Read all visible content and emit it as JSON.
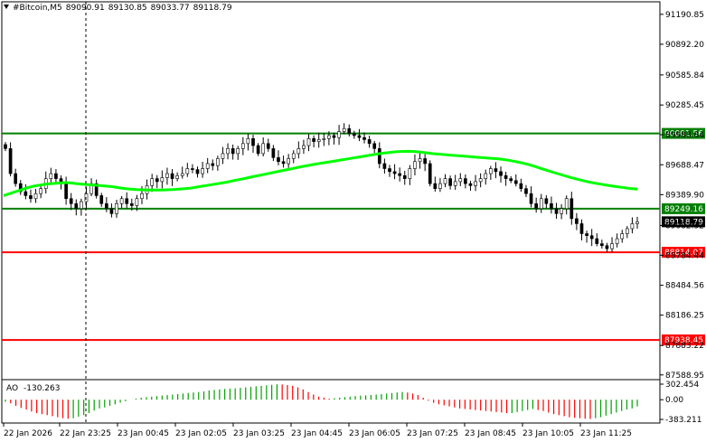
{
  "header": {
    "symbol": "#Bitcoin,M5",
    "open": "89090.91",
    "high": "89130.85",
    "low": "89033.77",
    "close": "89118.79"
  },
  "indicator": {
    "name": "AO",
    "value": "-130.263",
    "axis_labels": [
      "302.454",
      "0.00",
      "-383.211"
    ],
    "axis_values": [
      302.454,
      0,
      -383.211
    ]
  },
  "colors": {
    "background": "#ffffff",
    "candles": "#000000",
    "moving_average": "#00ff00",
    "support_lines": "#008000",
    "resistance_lines": "#ff0000",
    "ao_up": "#00a000",
    "ao_down": "#ff0000",
    "crosshair": "#000000"
  },
  "chart_data": {
    "type": "candlestick",
    "price_axis_labels": [
      "91190.85",
      "90892.20",
      "90585.84",
      "90285.45",
      "89988.84",
      "89688.47",
      "89389.90",
      "89082.32",
      "88784.44",
      "88484.56",
      "88186.25",
      "87883.22",
      "87588.95"
    ],
    "price_axis_values": [
      91190.85,
      90892.2,
      90585.84,
      90285.45,
      89988.84,
      89688.47,
      89389.9,
      89082.32,
      88784.44,
      88484.56,
      88186.25,
      87883.22,
      87588.95
    ],
    "ylim": [
      87560,
      91280
    ],
    "time_labels": [
      "22 Jan 2026",
      "22 Jan 23:25",
      "23 Jan 00:45",
      "23 Jan 02:05",
      "23 Jan 03:25",
      "23 Jan 04:45",
      "23 Jan 06:05",
      "23 Jan 07:25",
      "23 Jan 08:45",
      "23 Jan 10:05",
      "23 Jan 11:25"
    ],
    "levels": [
      {
        "label": "90001.56",
        "value": 90001.56,
        "kind": "green"
      },
      {
        "label": "89249.16",
        "value": 89249.16,
        "kind": "green"
      },
      {
        "label": "88814.07",
        "value": 88814.07,
        "kind": "red"
      },
      {
        "label": "87938.45",
        "value": 87938.45,
        "kind": "red"
      }
    ],
    "current_price": {
      "label": "89118.79",
      "value": 89118.79
    },
    "closes": [
      89850,
      89600,
      89500,
      89420,
      89380,
      89350,
      89400,
      89450,
      89550,
      89600,
      89550,
      89500,
      89350,
      89300,
      89250,
      89320,
      89400,
      89500,
      89380,
      89300,
      89250,
      89200,
      89300,
      89350,
      89300,
      89280,
      89350,
      89400,
      89480,
      89550,
      89520,
      89560,
      89600,
      89550,
      89580,
      89600,
      89650,
      89640,
      89600,
      89650,
      89700,
      89680,
      89750,
      89800,
      89850,
      89800,
      89850,
      89900,
      89950,
      89880,
      89800,
      89900,
      89850,
      89760,
      89720,
      89700,
      89750,
      89800,
      89850,
      89880,
      89950,
      89920,
      89940,
      89950,
      89980,
      89960,
      90020,
      90050,
      90000,
      89980,
      89960,
      89940,
      89900,
      89850,
      89700,
      89650,
      89620,
      89600,
      89580,
      89550,
      89650,
      89720,
      89750,
      89700,
      89500,
      89450,
      89500,
      89550,
      89480,
      89520,
      89550,
      89500,
      89480,
      89520,
      89550,
      89600,
      89650,
      89620,
      89580,
      89550,
      89530,
      89500,
      89450,
      89400,
      89300,
      89250,
      89350,
      89300,
      89250,
      89200,
      89250,
      89350,
      89150,
      89100,
      89000,
      88980,
      88950,
      88900,
      88880,
      88850,
      88900,
      88950,
      89000,
      89050,
      89100,
      89118
    ],
    "moving_average": [
      89380,
      89400,
      89420,
      89440,
      89460,
      89475,
      89485,
      89495,
      89500,
      89505,
      89510,
      89508,
      89500,
      89495,
      89490,
      89485,
      89480,
      89475,
      89470,
      89460,
      89452,
      89445,
      89440,
      89438,
      89436,
      89435,
      89435,
      89438,
      89440,
      89445,
      89450,
      89455,
      89465,
      89475,
      89485,
      89495,
      89505,
      89515,
      89528,
      89540,
      89552,
      89565,
      89578,
      89590,
      89602,
      89615,
      89628,
      89640,
      89652,
      89665,
      89676,
      89687,
      89698,
      89708,
      89717,
      89727,
      89737,
      89747,
      89757,
      89767,
      89777,
      89787,
      89797,
      89805,
      89812,
      89818,
      89822,
      89823,
      89821,
      89815,
      89808,
      89800,
      89795,
      89790,
      89785,
      89780,
      89776,
      89771,
      89766,
      89761,
      89756,
      89752,
      89747,
      89740,
      89730,
      89718,
      89705,
      89690,
      89672,
      89652,
      89633,
      89614,
      89596,
      89578,
      89561,
      89545,
      89530,
      89516,
      89504,
      89494,
      89484,
      89474,
      89466,
      89458,
      89451,
      89445
    ],
    "ao": [
      -40,
      -70,
      -120,
      -160,
      -190,
      -230,
      -260,
      -280,
      -300,
      -320,
      -340,
      -360,
      -370,
      -360,
      -330,
      -300,
      -260,
      -210,
      -170,
      -150,
      -120,
      -90,
      -60,
      -30,
      0,
      20,
      40,
      50,
      60,
      70,
      80,
      90,
      100,
      110,
      120,
      130,
      140,
      150,
      160,
      180,
      190,
      200,
      210,
      215,
      220,
      230,
      240,
      250,
      260,
      270,
      280,
      290,
      300,
      295,
      285,
      270,
      240,
      200,
      150,
      100,
      60,
      40,
      20,
      30,
      40,
      50,
      60,
      70,
      80,
      85,
      90,
      100,
      110,
      120,
      130,
      140,
      150,
      140,
      120,
      90,
      40,
      -20,
      -60,
      -90,
      -110,
      -130,
      -150,
      -170,
      -180,
      -190,
      -200,
      -210,
      -220,
      -230,
      -240,
      -250,
      -260,
      -260,
      -240,
      -220,
      -200,
      -180,
      -200,
      -220,
      -250,
      -280,
      -300,
      -320,
      -340,
      -350,
      -360,
      -370,
      -375,
      -360,
      -340,
      -310,
      -280,
      -250,
      -220,
      -190,
      -170,
      -130
    ],
    "x_axis": "time",
    "y_axis": "price"
  }
}
